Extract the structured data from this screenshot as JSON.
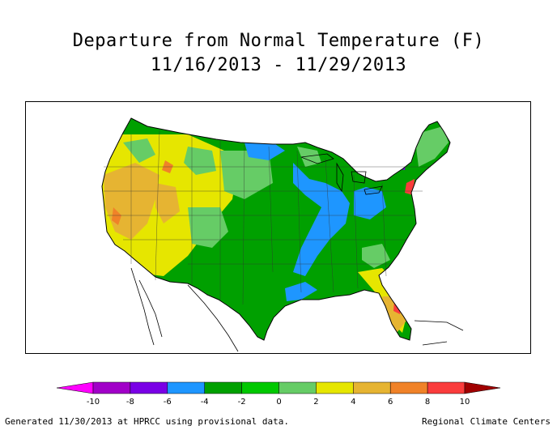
{
  "title": {
    "line1": "Departure from Normal Temperature (F)",
    "line2": "11/16/2013 - 11/29/2013"
  },
  "legend": {
    "ticks": [
      "-10",
      "-8",
      "-6",
      "-4",
      "-2",
      "0",
      "2",
      "4",
      "6",
      "8",
      "10"
    ],
    "colors": [
      "#ff00ff",
      "#a100c8",
      "#7a00e6",
      "#1e96ff",
      "#00a000",
      "#00c800",
      "#66cc66",
      "#e6e600",
      "#e6b432",
      "#f08228",
      "#fa3c3c",
      "#dc0000",
      "#a00000"
    ]
  },
  "footer": {
    "left": "Generated 11/30/2013 at HPRCC using provisional data.",
    "right": "Regional Climate Centers"
  }
}
